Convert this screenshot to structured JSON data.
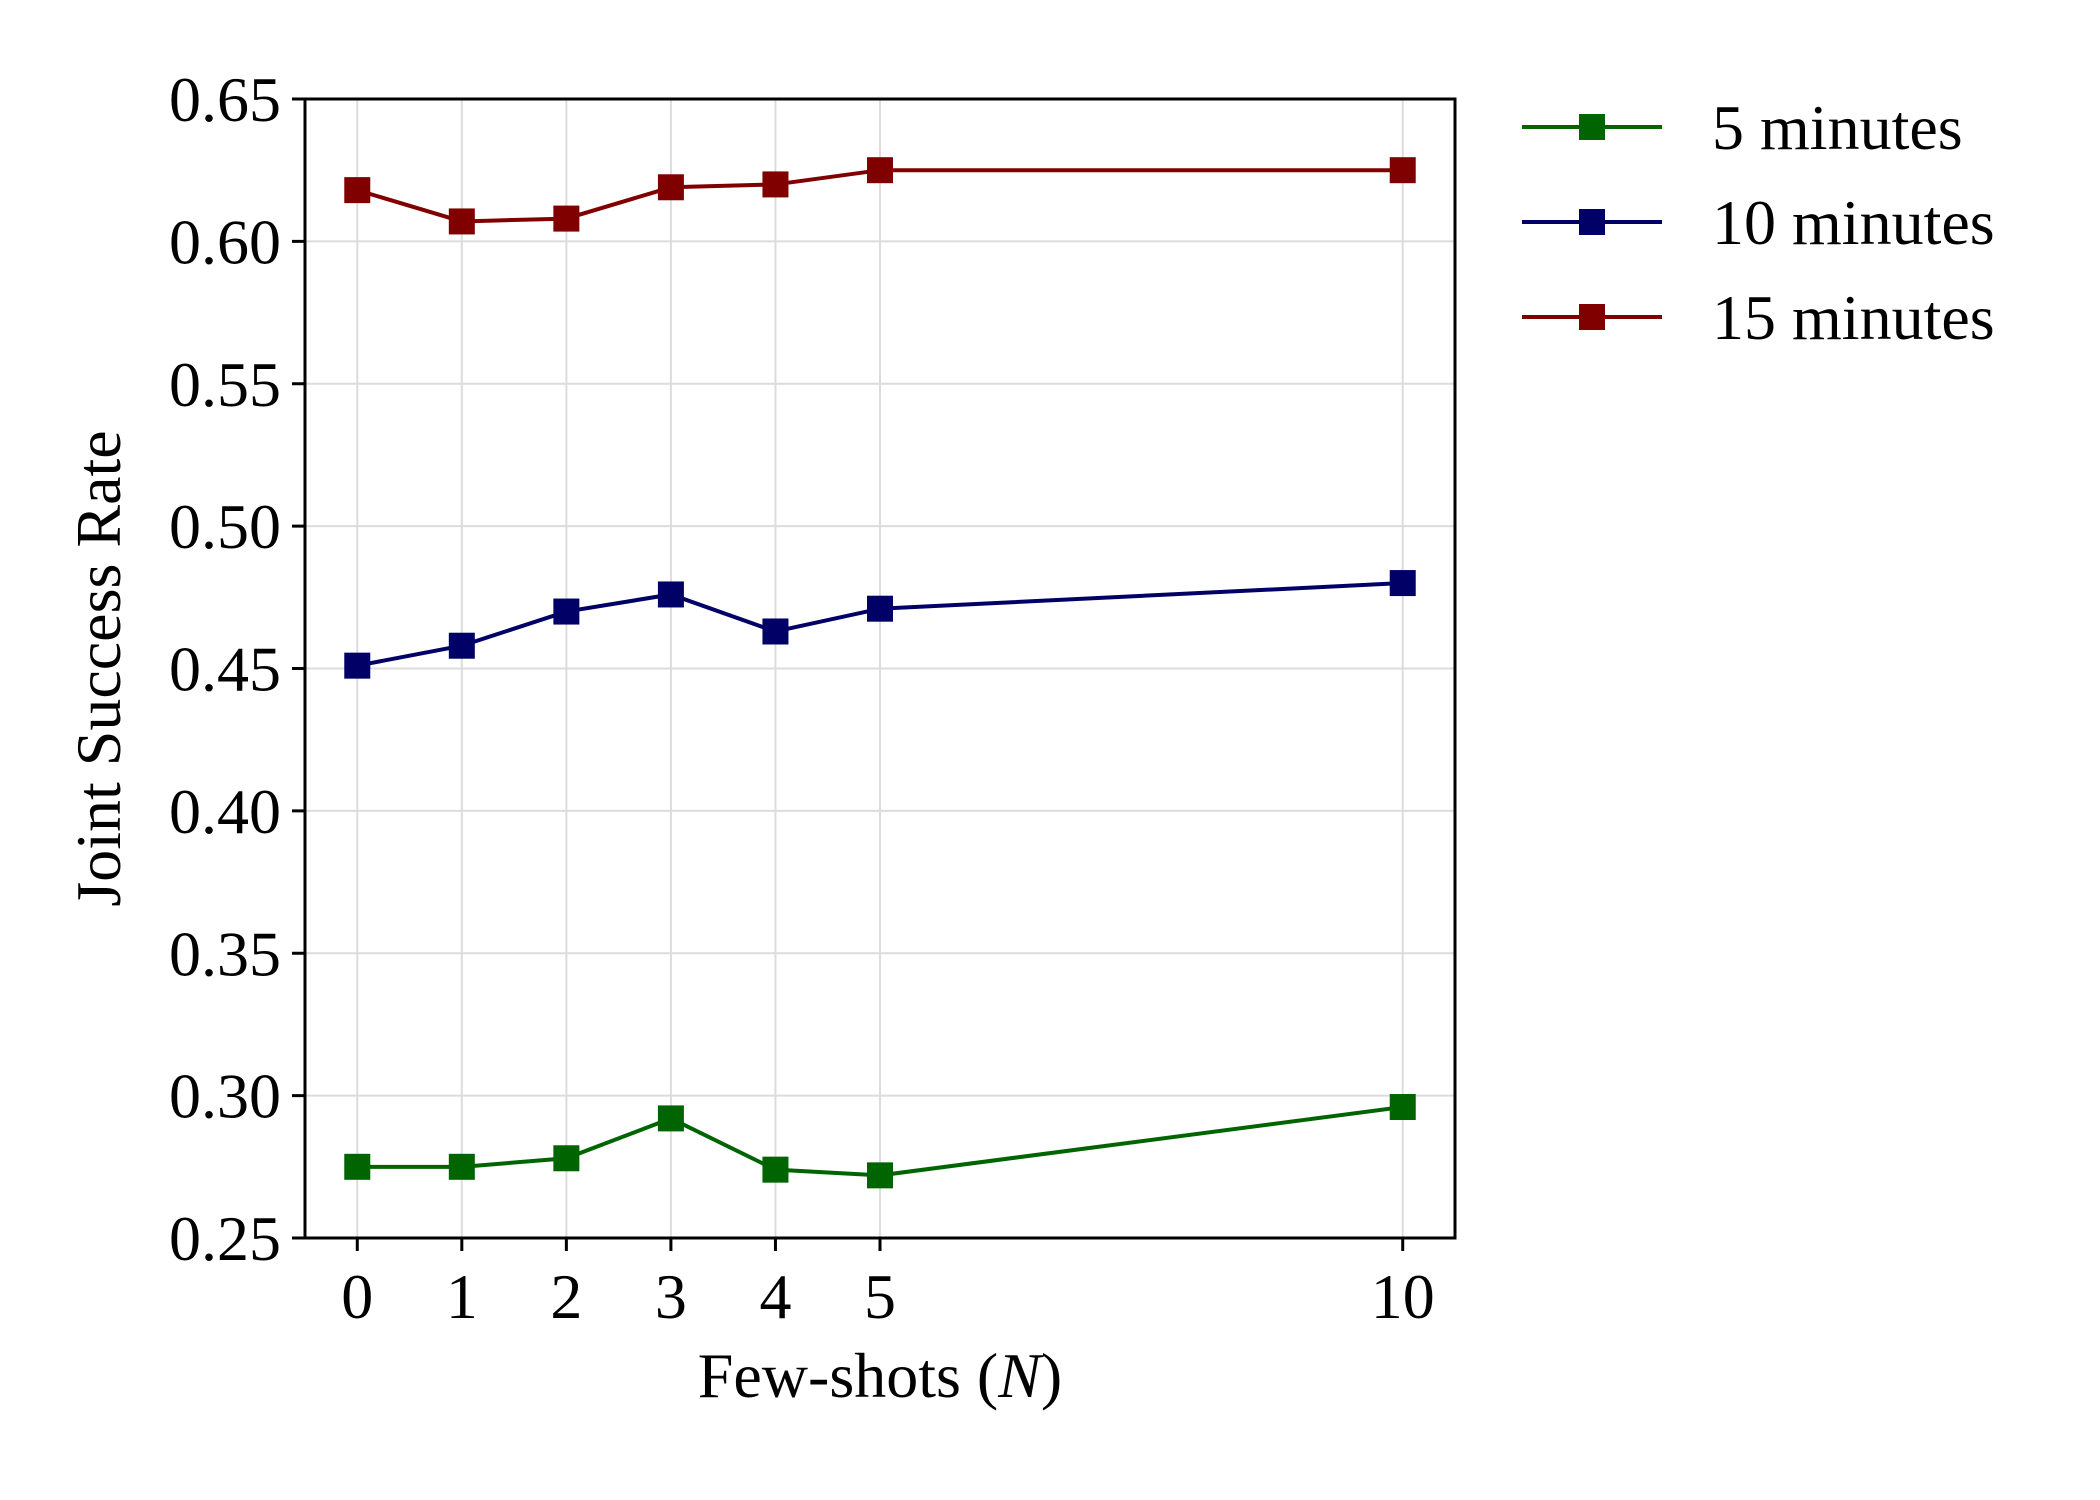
{
  "chart_data": {
    "type": "line",
    "title": "",
    "xlabel_main": "Few-shots (",
    "xlabel_var": "N",
    "xlabel_close": ")",
    "ylabel": "Joint Success Rate",
    "x": [
      0,
      1,
      2,
      3,
      4,
      5,
      10
    ],
    "xticks": [
      "0",
      "1",
      "2",
      "3",
      "4",
      "5",
      "10"
    ],
    "xlim": [
      -0.5,
      10.5
    ],
    "ylim": [
      0.25,
      0.65
    ],
    "yticks": [
      "0.25",
      "0.30",
      "0.35",
      "0.40",
      "0.45",
      "0.50",
      "0.55",
      "0.60",
      "0.65"
    ],
    "grid": true,
    "legend_position": "outside-top-right",
    "marker": "square",
    "series": [
      {
        "name": "5 minutes",
        "color": "#006400",
        "values": [
          0.275,
          0.275,
          0.278,
          0.292,
          0.274,
          0.272,
          0.296
        ]
      },
      {
        "name": "10 minutes",
        "color": "#000066",
        "values": [
          0.451,
          0.458,
          0.47,
          0.476,
          0.463,
          0.471,
          0.48
        ]
      },
      {
        "name": "15 minutes",
        "color": "#800000",
        "values": [
          0.618,
          0.607,
          0.608,
          0.619,
          0.62,
          0.625,
          0.625
        ]
      }
    ]
  }
}
